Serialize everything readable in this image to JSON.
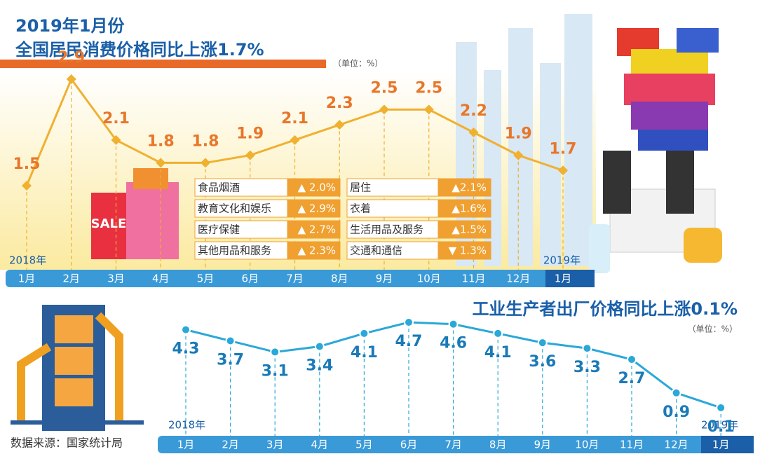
{
  "chart_data": [
    {
      "type": "line",
      "title": "2019年1月份",
      "subtitle": "全国居民消费价格同比上涨1.7%",
      "unit": "（单位：%）",
      "categories": [
        "1月",
        "2月",
        "3月",
        "4月",
        "5月",
        "6月",
        "7月",
        "8月",
        "9月",
        "10月",
        "11月",
        "12月",
        "1月"
      ],
      "start_label": "2018年",
      "end_label": "2019年",
      "values": [
        1.5,
        2.9,
        2.1,
        1.8,
        1.8,
        1.9,
        2.1,
        2.3,
        2.5,
        2.5,
        2.2,
        1.9,
        1.7
      ],
      "color": "#f0b030",
      "label_color": "#e8762a"
    },
    {
      "type": "line",
      "title": "工业生产者出厂价格同比上涨0.1%",
      "unit": "（单位：%）",
      "categories": [
        "1月",
        "2月",
        "3月",
        "4月",
        "5月",
        "6月",
        "7月",
        "8月",
        "9月",
        "10月",
        "11月",
        "12月",
        "1月"
      ],
      "start_label": "2018年",
      "end_label": "2019年",
      "values": [
        4.3,
        3.7,
        3.1,
        3.4,
        4.1,
        4.7,
        4.6,
        4.1,
        3.6,
        3.3,
        2.7,
        0.9,
        0.1
      ],
      "color": "#2aa8d8",
      "label_color": "#1a7ab8"
    }
  ],
  "breakdown": {
    "rows": [
      [
        "食品烟酒",
        "▲ 2.0%",
        "居住",
        "▲2.1%"
      ],
      [
        "教育文化和娱乐",
        "▲ 2.9%",
        "衣着",
        "▲1.6%"
      ],
      [
        "医疗保健",
        "▲ 2.7%",
        "生活用品及服务",
        "▲1.5%"
      ],
      [
        "其他用品和服务",
        "▲ 2.3%",
        "交通和通信",
        "▼ 1.3%"
      ]
    ]
  },
  "source": "数据来源：国家统计局"
}
